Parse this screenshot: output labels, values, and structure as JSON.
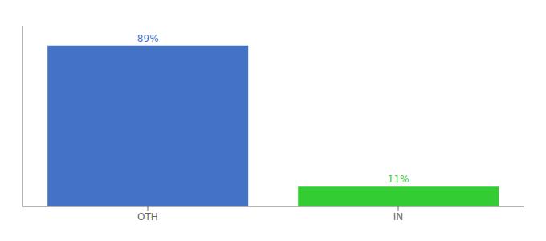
{
  "chart_data": {
    "type": "bar",
    "categories": [
      "OTH",
      "IN"
    ],
    "values": [
      89,
      11
    ],
    "value_labels": [
      "89%",
      "11%"
    ],
    "colors": [
      "#4472c4",
      "#33cc33"
    ],
    "ylim": [
      0,
      100
    ],
    "yticks": [],
    "tick_labels": "x",
    "data_labels": true,
    "grid": false
  }
}
